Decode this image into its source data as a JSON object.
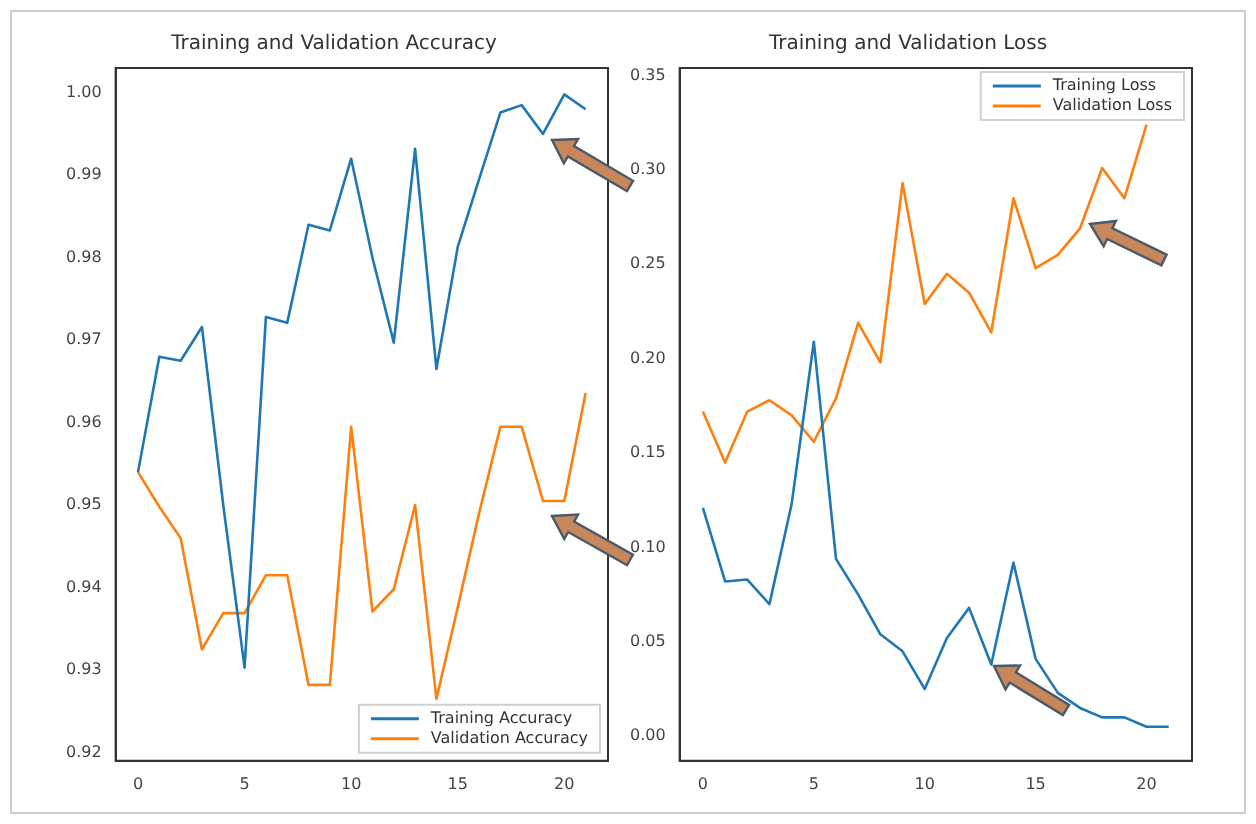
{
  "chart_data": [
    {
      "type": "line",
      "title": "Training and Validation Accuracy",
      "x": [
        0,
        1,
        2,
        3,
        4,
        5,
        6,
        7,
        8,
        9,
        10,
        11,
        12,
        13,
        14,
        15,
        16,
        17,
        18,
        19,
        20,
        21
      ],
      "xlim": [
        -1.05,
        22.05
      ],
      "xticks": [
        0,
        5,
        10,
        15,
        20
      ],
      "ylim": [
        0.919,
        1.003
      ],
      "yticks": [
        0.92,
        0.93,
        0.94,
        0.95,
        0.96,
        0.97,
        0.98,
        0.99,
        {
          "value": 1,
          "label": "1.00"
        }
      ],
      "legend": "bottom right",
      "grid": false,
      "series": [
        {
          "name": "Training Accuracy",
          "color": "#1f77b4",
          "values": [
            0.954,
            0.968,
            0.9675,
            0.9716,
            0.95,
            0.9303,
            0.9728,
            0.9721,
            0.984,
            0.9833,
            0.992,
            0.98,
            0.9697,
            0.9932,
            0.9665,
            0.9813,
            0.9895,
            0.9976,
            0.9985,
            0.995,
            0.9998,
            0.998
          ]
        },
        {
          "name": "Validation Accuracy",
          "color": "#ff7f0e",
          "values": [
            0.954,
            0.9498,
            0.946,
            0.9325,
            0.9369,
            0.9369,
            0.9415,
            0.9415,
            0.9282,
            0.9282,
            0.9595,
            0.9371,
            0.9398,
            0.95,
            0.9265,
            0.9376,
            0.949,
            0.9595,
            0.9595,
            0.9505,
            0.9505,
            0.9636
          ]
        }
      ]
    },
    {
      "type": "line",
      "title": "Training and Validation Loss",
      "x": [
        0,
        1,
        2,
        3,
        4,
        5,
        6,
        7,
        8,
        9,
        10,
        11,
        12,
        13,
        14,
        15,
        16,
        17,
        18,
        19,
        20,
        21
      ],
      "xlim": [
        -1.05,
        22.05
      ],
      "xticks": [
        0,
        5,
        10,
        15,
        20
      ],
      "ylim": [
        -0.013,
        0.354
      ],
      "yticks": [
        {
          "value": 0,
          "label": "0.00"
        },
        0.05,
        {
          "value": 0.1,
          "label": "0.10"
        },
        0.15,
        {
          "value": 0.2,
          "label": "0.20"
        },
        0.25,
        {
          "value": 0.3,
          "label": "0.30"
        },
        0.35
      ],
      "legend": "top right",
      "grid": false,
      "series": [
        {
          "name": "Training Loss",
          "color": "#1f77b4",
          "values": [
            0.121,
            0.082,
            0.083,
            0.07,
            0.123,
            0.209,
            0.094,
            0.075,
            0.054,
            0.045,
            0.025,
            0.052,
            0.068,
            0.038,
            0.092,
            0.041,
            0.023,
            0.015,
            0.01,
            0.01,
            0.005,
            0.005
          ]
        },
        {
          "name": "Validation Loss",
          "color": "#ff7f0e",
          "x": [
            0,
            1,
            2,
            3,
            4,
            5,
            6,
            7,
            8,
            9,
            10,
            11,
            12,
            13,
            14,
            15,
            16,
            17,
            18,
            19,
            20
          ],
          "values": [
            0.172,
            0.145,
            0.172,
            0.178,
            0.17,
            0.156,
            0.179,
            0.219,
            0.198,
            0.293,
            0.229,
            0.245,
            0.235,
            0.214,
            0.285,
            0.248,
            0.255,
            0.269,
            0.301,
            0.285,
            0.324
          ]
        }
      ]
    }
  ]
}
